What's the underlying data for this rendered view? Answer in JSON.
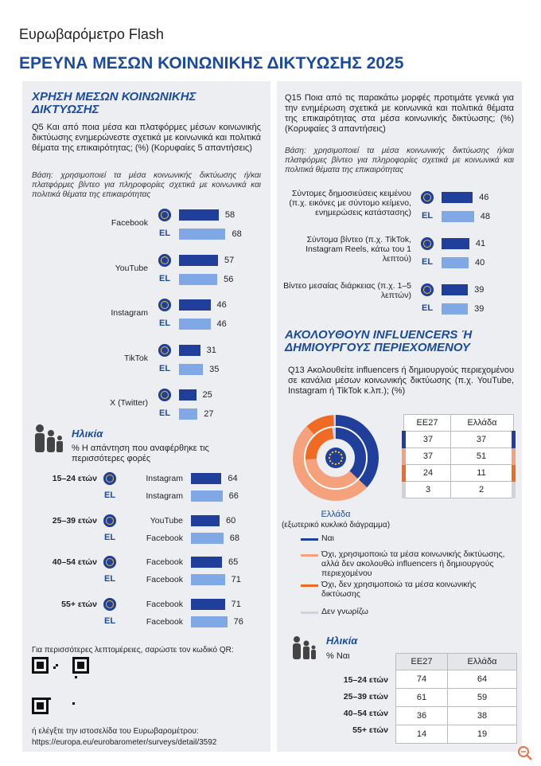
{
  "header": {
    "subtitle": "Ευρωβαρόμετρο Flash",
    "title": "ΕΡΕΥΝΑ ΜΕΣΩΝ ΚΟΙΝΩΝΙΚΗΣ ΔΙΚΤΥΩΣΗΣ 2025"
  },
  "left": {
    "title": "ΧΡΗΣΗ ΜΕΣΩΝ ΚΟΙΝΩΝΙΚΗΣ ΔΙΚΤΥΩΣΗΣ",
    "question": "Q5 Και από ποια μέσα και πλατφόρμες μέσων κοινωνικής δικτύωσης ενημερώνεστε σχετικά με κοινωνικά και πολιτικά θέματα της επικαιρότητας; (%) (Κορυφαίες 5 απαντήσεις)",
    "base": "Βάση: χρησιμοποιεί τα μέσα κοινωνικής δικτύωσης ή/και πλατφόρμες βίντεο για πληροφορίες σχετικά με κοινωνικά και πολιτικά θέματα της επικαιρότητας",
    "el_label": "EL",
    "platforms": [
      {
        "name": "Facebook",
        "eu": 58,
        "el": 68
      },
      {
        "name": "YouTube",
        "eu": 57,
        "el": 56
      },
      {
        "name": "Instagram",
        "eu": 46,
        "el": 46
      },
      {
        "name": "TikTok",
        "eu": 31,
        "el": 35
      },
      {
        "name": "X (Twitter)",
        "eu": 25,
        "el": 27
      }
    ],
    "age": {
      "title": "Ηλικία",
      "subtitle": "% Η απάντηση που αναφέρθηκε τις περισσότερες φορές",
      "groups": [
        {
          "name": "15–24 ετών",
          "eu_platform": "Instagram",
          "eu": 64,
          "el_platform": "Instagram",
          "el": 66
        },
        {
          "name": "25–39 ετών",
          "eu_platform": "YouTube",
          "eu": 60,
          "el_platform": "Facebook",
          "el": 68
        },
        {
          "name": "40–54 ετών",
          "eu_platform": "Facebook",
          "eu": 65,
          "el_platform": "Facebook",
          "el": 71
        },
        {
          "name": "55+ ετών",
          "eu_platform": "Facebook",
          "eu": 71,
          "el_platform": "Facebook",
          "el": 76
        }
      ]
    },
    "qr_text": "Για περισσότερες λεπτομέρειες, σαρώστε τον κωδικό QR:",
    "link_text": "ή ελέγξτε την ιστοσελίδα του Ευρωβαρομέτρου:",
    "url": "https://europa.eu/eurobarometer/surveys/detail/3592"
  },
  "right": {
    "question": "Q15 Ποια από τις παρακάτω μορφές προτιμάτε γενικά για την ενημέρωση σχετικά με κοινωνικά και πολιτικά θέματα της επικαιρότητας στα μέσα κοινωνικής δικτύωσης; (%) (Κορυφαίες 3 απαντήσεις)",
    "base": "Βάση: χρησιμοποιεί τα μέσα κοινωνικής δικτύωσης ή/και πλατφόρμες βίντεο για πληροφορίες σχετικά με κοινωνικά και πολιτικά θέματα της επικαιρότητας",
    "formats": [
      {
        "name": "Σύντομες δημοσιεύσεις κειμένου (π.χ. εικόνες με σύντομο κείμενο, ενημερώσεις κατάστασης)",
        "eu": 46,
        "el": 48
      },
      {
        "name": "Σύντομα βίντεο (π.χ. TikTok, Instagram Reels, κάτω του 1 λεπτού)",
        "eu": 41,
        "el": 40
      },
      {
        "name": "Βίντεο μεσαίας διάρκειας (π.χ. 1–5 λεπτών)",
        "eu": 39,
        "el": 39
      }
    ],
    "influencers": {
      "title": "ΑΚΟΛΟΥΘΟΥΝ INFLUENCERS Ή ΔΗΜΙΟΥΡΓΟΥΣ ΠΕΡΙΕΧΟΜΕΝΟΥ",
      "question": "Q13 Ακολουθείτε influencers ή δημιουργούς περιεχομένου σε κανάλια μέσων κοινωνικής δικτύωσης (π.χ. YouTube, Instagram ή TikTok κ.λπ.); (%)",
      "outer_label": "Ελλάδα",
      "outer_note": "(εξωτερικό κυκλικό διάγραμμα)",
      "columns": [
        "ΕΕ27",
        "Ελλάδα"
      ],
      "answers": [
        {
          "label": "Ναι",
          "color": "#1f3f9a",
          "eu": 37,
          "el": 37
        },
        {
          "label": "Όχι, χρησιμοποιώ τα μέσα κοινωνικής δικτύωσης, αλλά δεν ακολουθώ influencers ή δημιουργούς περιεχομένου",
          "color": "#f5a27c",
          "eu": 37,
          "el": 51
        },
        {
          "label": "Όχι, δεν χρησιμοποιώ τα μέσα κοινωνικής δικτύωσης",
          "color": "#ef6a22",
          "eu": 24,
          "el": 11
        },
        {
          "label": "Δεν γνωρίζω",
          "color": "#cfd2d8",
          "eu": 3,
          "el": 2
        }
      ]
    },
    "age": {
      "title": "Ηλικία",
      "subtitle": "% Ναι",
      "columns": [
        "ΕΕ27",
        "Ελλάδα"
      ],
      "rows": [
        {
          "name": "15–24 ετών",
          "eu": 74,
          "el": 64
        },
        {
          "name": "25–39 ετών",
          "eu": 61,
          "el": 59
        },
        {
          "name": "40–54 ετών",
          "eu": 36,
          "el": 38
        },
        {
          "name": "55+ ετών",
          "eu": 14,
          "el": 19
        }
      ]
    }
  }
}
